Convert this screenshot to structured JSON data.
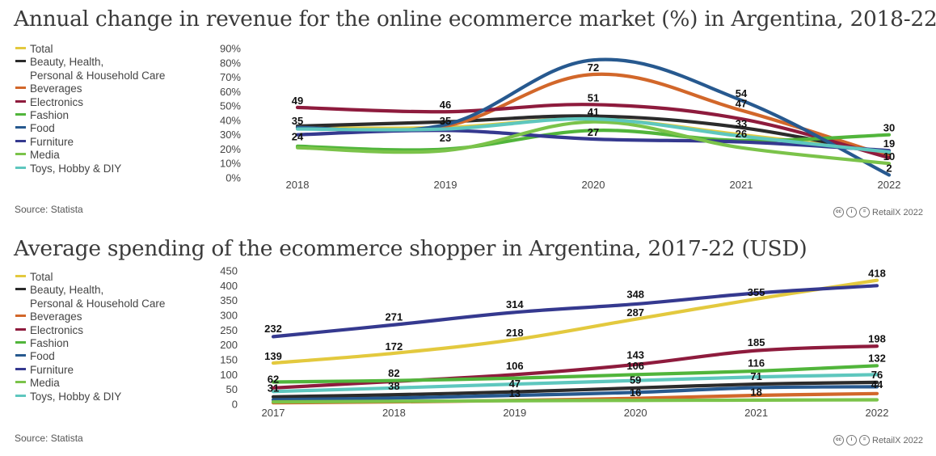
{
  "chart_data": [
    {
      "type": "line",
      "title": "Annual change in revenue for the online ecommerce market (%) in Argentina, 2018-22",
      "xlabel": "",
      "ylabel": "",
      "x": [
        "2018",
        "2019",
        "2020",
        "2021",
        "2022"
      ],
      "ylim": [
        0,
        90
      ],
      "yticks": [
        "0%",
        "10%",
        "20%",
        "30%",
        "40%",
        "50%",
        "60%",
        "70%",
        "80%",
        "90%"
      ],
      "series": [
        {
          "name": "Total",
          "color": "#e3c93e",
          "values": [
            35,
            35,
            41,
            30,
            18
          ]
        },
        {
          "name": "Beauty, Health, Personal & Household Care",
          "color": "#2b2b2b",
          "values": [
            36,
            39,
            43,
            35,
            16
          ]
        },
        {
          "name": "Beverages",
          "color": "#d2672a",
          "values": [
            35,
            36,
            72,
            47,
            15
          ]
        },
        {
          "name": "Electronics",
          "color": "#8e1b3d",
          "values": [
            49,
            46,
            51,
            41,
            14
          ]
        },
        {
          "name": "Fashion",
          "color": "#51b53b",
          "values": [
            22,
            20,
            33,
            26,
            30
          ]
        },
        {
          "name": "Food",
          "color": "#27598f",
          "values": [
            35,
            37,
            82,
            54,
            2
          ]
        },
        {
          "name": "Furniture",
          "color": "#35398f",
          "values": [
            30,
            33,
            27,
            25,
            19
          ]
        },
        {
          "name": "Media",
          "color": "#7bc34a",
          "values": [
            21,
            19,
            39,
            21,
            10
          ]
        },
        {
          "name": "Toys, Hobby & DIY",
          "color": "#5ec7be",
          "values": [
            34,
            34,
            41,
            29,
            18
          ]
        }
      ],
      "data_labels": [
        {
          "x": "2018",
          "value": 49,
          "text": "49"
        },
        {
          "x": "2018",
          "value": 35,
          "text": "35"
        },
        {
          "x": "2018",
          "value": 24,
          "text": "24"
        },
        {
          "x": "2019",
          "value": 46,
          "text": "46"
        },
        {
          "x": "2019",
          "value": 35,
          "text": "35"
        },
        {
          "x": "2019",
          "value": 23,
          "text": "23"
        },
        {
          "x": "2020",
          "value": 72,
          "text": "72"
        },
        {
          "x": "2020",
          "value": 51,
          "text": "51"
        },
        {
          "x": "2020",
          "value": 41,
          "text": "41"
        },
        {
          "x": "2020",
          "value": 27,
          "text": "27"
        },
        {
          "x": "2021",
          "value": 54,
          "text": "54"
        },
        {
          "x": "2021",
          "value": 47,
          "text": "47"
        },
        {
          "x": "2021",
          "value": 33,
          "text": "33"
        },
        {
          "x": "2021",
          "value": 26,
          "text": "26"
        },
        {
          "x": "2022",
          "value": 30,
          "text": "30"
        },
        {
          "x": "2022",
          "value": 19,
          "text": "19"
        },
        {
          "x": "2022",
          "value": 10,
          "text": "10"
        },
        {
          "x": "2022",
          "value": 2,
          "text": "2"
        }
      ],
      "legend_position": "left"
    },
    {
      "type": "line",
      "title": "Average spending of the ecommerce shopper in Argentina, 2017-22 (USD)",
      "xlabel": "",
      "ylabel": "",
      "x": [
        "2017",
        "2018",
        "2019",
        "2020",
        "2021",
        "2022"
      ],
      "ylim": [
        0,
        450
      ],
      "yticks": [
        "0",
        "50",
        "100",
        "150",
        "200",
        "250",
        "300",
        "350",
        "400",
        "450"
      ],
      "series": [
        {
          "name": "Total",
          "color": "#e3c93e",
          "values": [
            139,
            172,
            218,
            287,
            355,
            418
          ]
        },
        {
          "name": "Beauty, Health, Personal & Household Care",
          "color": "#2b2b2b",
          "values": [
            25,
            32,
            42,
            55,
            68,
            74
          ]
        },
        {
          "name": "Beverages",
          "color": "#d2672a",
          "values": [
            5,
            8,
            13,
            20,
            30,
            36
          ]
        },
        {
          "name": "Electronics",
          "color": "#8e1b3d",
          "values": [
            55,
            77,
            100,
            134,
            181,
            196
          ]
        },
        {
          "name": "Fashion",
          "color": "#51b53b",
          "values": [
            75,
            80,
            88,
            100,
            112,
            130
          ]
        },
        {
          "name": "Food",
          "color": "#27598f",
          "values": [
            15,
            21,
            30,
            40,
            56,
            59
          ]
        },
        {
          "name": "Furniture",
          "color": "#35398f",
          "values": [
            228,
            268,
            310,
            338,
            375,
            400
          ]
        },
        {
          "name": "Media",
          "color": "#7bc34a",
          "values": [
            8,
            10,
            12,
            13,
            14,
            15
          ]
        },
        {
          "name": "Toys, Hobby & DIY",
          "color": "#5ec7be",
          "values": [
            43,
            55,
            68,
            80,
            92,
            100
          ]
        }
      ],
      "data_labels": [
        {
          "x": "2017",
          "value": 232,
          "text": "232"
        },
        {
          "x": "2017",
          "value": 139,
          "text": "139"
        },
        {
          "x": "2017",
          "value": 62,
          "text": "62"
        },
        {
          "x": "2017",
          "value": 31,
          "text": "31"
        },
        {
          "x": "2018",
          "value": 271,
          "text": "271"
        },
        {
          "x": "2018",
          "value": 172,
          "text": "172"
        },
        {
          "x": "2018",
          "value": 82,
          "text": "82"
        },
        {
          "x": "2018",
          "value": 38,
          "text": "38"
        },
        {
          "x": "2019",
          "value": 314,
          "text": "314"
        },
        {
          "x": "2019",
          "value": 218,
          "text": "218"
        },
        {
          "x": "2019",
          "value": 106,
          "text": "106"
        },
        {
          "x": "2019",
          "value": 47,
          "text": "47"
        },
        {
          "x": "2019",
          "value": 13,
          "text": "13"
        },
        {
          "x": "2020",
          "value": 348,
          "text": "348"
        },
        {
          "x": "2020",
          "value": 287,
          "text": "287"
        },
        {
          "x": "2020",
          "value": 143,
          "text": "143"
        },
        {
          "x": "2020",
          "value": 106,
          "text": "106"
        },
        {
          "x": "2020",
          "value": 59,
          "text": "59"
        },
        {
          "x": "2020",
          "value": 16,
          "text": "16"
        },
        {
          "x": "2021",
          "value": 355,
          "text": "355"
        },
        {
          "x": "2021",
          "value": 185,
          "text": "185"
        },
        {
          "x": "2021",
          "value": 116,
          "text": "116"
        },
        {
          "x": "2021",
          "value": 71,
          "text": "71"
        },
        {
          "x": "2021",
          "value": 18,
          "text": "18"
        },
        {
          "x": "2022",
          "value": 418,
          "text": "418"
        },
        {
          "x": "2022",
          "value": 198,
          "text": "198"
        },
        {
          "x": "2022",
          "value": 132,
          "text": "132"
        },
        {
          "x": "2022",
          "value": 76,
          "text": "76"
        },
        {
          "x": "2022",
          "value": 44,
          "text": "44"
        }
      ],
      "legend_position": "left"
    }
  ],
  "legend": {
    "items": [
      {
        "line1": "Total",
        "color": "#e3c93e"
      },
      {
        "line1": "Beauty, Health,",
        "line2": "Personal & Household Care",
        "color": "#2b2b2b"
      },
      {
        "line1": "Beverages",
        "color": "#d2672a"
      },
      {
        "line1": "Electronics",
        "color": "#8e1b3d"
      },
      {
        "line1": "Fashion",
        "color": "#51b53b"
      },
      {
        "line1": "Food",
        "color": "#27598f"
      },
      {
        "line1": "Furniture",
        "color": "#35398f"
      },
      {
        "line1": "Media",
        "color": "#7bc34a"
      },
      {
        "line1": "Toys, Hobby & DIY",
        "color": "#5ec7be"
      }
    ]
  },
  "footer": {
    "source": "Source: Statista",
    "brand": "RetailX 2022",
    "license_icons": [
      "cc",
      "by",
      "nd"
    ]
  }
}
